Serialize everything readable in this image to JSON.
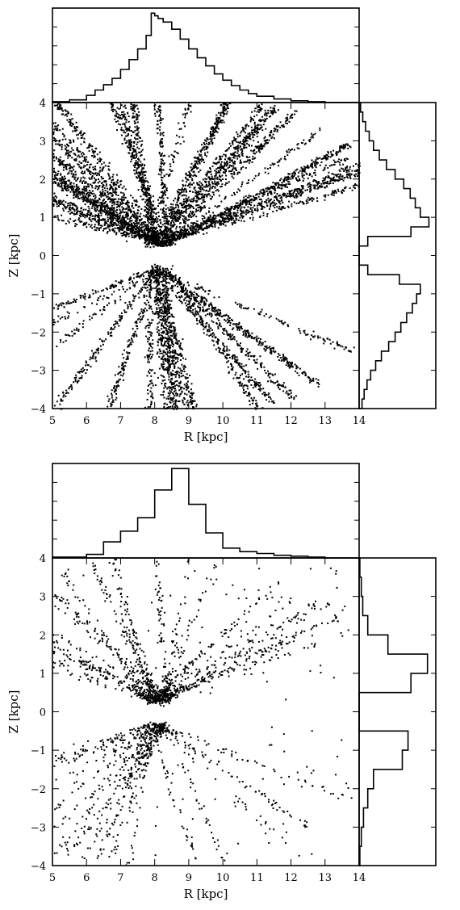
{
  "chart_data": [
    {
      "type": "scatter",
      "xlabel": "R [kpc]",
      "ylabel": "Z [kpc]",
      "xlim": [
        5,
        14
      ],
      "ylim": [
        -4,
        4
      ],
      "xticks": [
        "5",
        "6",
        "7",
        "8",
        "9",
        "10",
        "11",
        "12",
        "13",
        "14"
      ],
      "yticks": [
        "-4",
        "-3",
        "-2",
        "-1",
        "0",
        "1",
        "2",
        "3",
        "4"
      ],
      "marginal_hist_R": {
        "bin_edges": [
          5.0,
          5.5,
          6.0,
          6.25,
          6.5,
          6.75,
          7.0,
          7.25,
          7.5,
          7.75,
          7.9,
          8.0,
          8.1,
          8.25,
          8.5,
          8.75,
          9.0,
          9.25,
          9.5,
          9.75,
          10.0,
          10.25,
          10.5,
          10.75,
          11.0,
          11.5,
          12.0,
          12.5,
          13.0,
          14.0
        ],
        "heights": [
          0.01,
          0.03,
          0.08,
          0.14,
          0.2,
          0.27,
          0.37,
          0.48,
          0.6,
          0.75,
          1.0,
          0.97,
          0.94,
          0.9,
          0.82,
          0.71,
          0.6,
          0.5,
          0.41,
          0.32,
          0.25,
          0.19,
          0.14,
          0.1,
          0.07,
          0.04,
          0.02,
          0.01,
          0.0
        ]
      },
      "marginal_hist_Z": {
        "bin_edges": [
          -4.0,
          -3.75,
          -3.5,
          -3.25,
          -3.0,
          -2.75,
          -2.5,
          -2.25,
          -2.0,
          -1.75,
          -1.5,
          -1.25,
          -1.0,
          -0.75,
          -0.5,
          -0.25,
          0.0,
          0.25,
          0.5,
          0.75,
          1.0,
          1.25,
          1.5,
          1.75,
          2.0,
          2.25,
          2.5,
          2.75,
          3.0,
          3.25,
          3.5,
          3.75,
          4.0
        ],
        "heights": [
          0.04,
          0.07,
          0.11,
          0.16,
          0.23,
          0.31,
          0.41,
          0.5,
          0.58,
          0.66,
          0.74,
          0.8,
          0.85,
          0.56,
          0.12,
          0.0,
          0.0,
          0.12,
          0.72,
          0.97,
          0.85,
          0.78,
          0.71,
          0.62,
          0.5,
          0.38,
          0.28,
          0.2,
          0.14,
          0.09,
          0.05,
          0.02
        ]
      }
    },
    {
      "type": "scatter",
      "xlabel": "R [kpc]",
      "ylabel": "Z [kpc]",
      "xlim": [
        5,
        14
      ],
      "ylim": [
        -4,
        4
      ],
      "xticks": [
        "5",
        "6",
        "7",
        "8",
        "9",
        "10",
        "11",
        "12",
        "13",
        "14"
      ],
      "yticks": [
        "-4",
        "-3",
        "-2",
        "-1",
        "0",
        "1",
        "2",
        "3",
        "4"
      ],
      "marginal_hist_R": {
        "bin_edges": [
          5.0,
          6.0,
          6.5,
          7.0,
          7.5,
          8.0,
          8.5,
          9.0,
          9.5,
          10.0,
          10.5,
          11.0,
          11.5,
          12.0,
          12.5,
          13.0,
          14.0
        ],
        "heights": [
          0.01,
          0.04,
          0.18,
          0.3,
          0.45,
          0.76,
          1.0,
          0.6,
          0.28,
          0.11,
          0.07,
          0.05,
          0.03,
          0.02,
          0.01,
          0.0
        ]
      },
      "marginal_hist_Z": {
        "bin_edges": [
          -4.0,
          -3.5,
          -3.0,
          -2.5,
          -2.0,
          -1.5,
          -1.0,
          -0.5,
          0.0,
          0.5,
          1.0,
          1.5,
          2.0,
          2.5,
          3.0,
          3.5,
          4.0
        ],
        "heights": [
          0.01,
          0.03,
          0.06,
          0.12,
          0.2,
          0.6,
          0.68,
          0.0,
          0.0,
          0.72,
          0.95,
          0.4,
          0.12,
          0.05,
          0.03,
          0.01
        ]
      }
    }
  ]
}
